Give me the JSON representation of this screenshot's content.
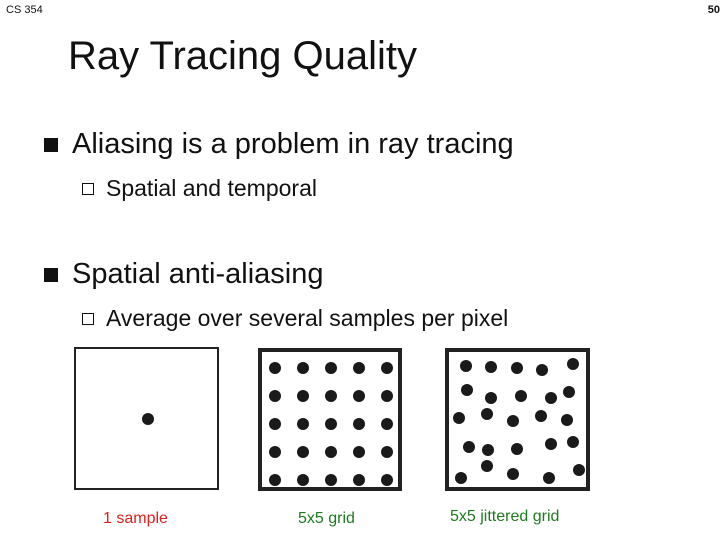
{
  "header": {
    "course": "CS 354",
    "page_number": "50"
  },
  "slide": {
    "title": "Ray Tracing Quality",
    "bullets": [
      {
        "text": "Aliasing is a problem in ray tracing",
        "sub": "Spatial and temporal"
      },
      {
        "text": "Spatial anti-aliasing",
        "sub": "Average over several samples per pixel"
      }
    ]
  },
  "figures": {
    "one_sample": {
      "caption": "1 sample",
      "caption_color": "#e0201b"
    },
    "grid": {
      "caption": "5x5 grid",
      "caption_color": "#1f7a1f",
      "rows": 5,
      "cols": 5
    },
    "jittered": {
      "caption": "5x5 jittered grid",
      "caption_color": "#1f7a1f"
    }
  }
}
